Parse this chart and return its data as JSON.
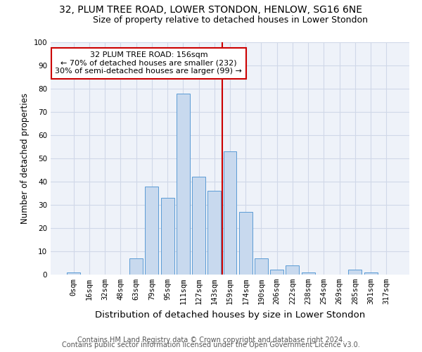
{
  "title": "32, PLUM TREE ROAD, LOWER STONDON, HENLOW, SG16 6NE",
  "subtitle": "Size of property relative to detached houses in Lower Stondon",
  "xlabel": "Distribution of detached houses by size in Lower Stondon",
  "ylabel": "Number of detached properties",
  "bar_labels": [
    "0sqm",
    "16sqm",
    "32sqm",
    "48sqm",
    "63sqm",
    "79sqm",
    "95sqm",
    "111sqm",
    "127sqm",
    "143sqm",
    "159sqm",
    "174sqm",
    "190sqm",
    "206sqm",
    "222sqm",
    "238sqm",
    "254sqm",
    "269sqm",
    "285sqm",
    "301sqm",
    "317sqm"
  ],
  "bar_heights": [
    1,
    0,
    0,
    0,
    7,
    38,
    33,
    78,
    42,
    36,
    53,
    27,
    7,
    2,
    4,
    1,
    0,
    0,
    2,
    1,
    0
  ],
  "bar_color": "#c8d9ee",
  "bar_edge_color": "#5b9bd5",
  "grid_color": "#d0d8e8",
  "background_color": "#eef2f9",
  "vline_x_index": 10,
  "vline_color": "#cc0000",
  "annotation_text": "32 PLUM TREE ROAD: 156sqm\n← 70% of detached houses are smaller (232)\n30% of semi-detached houses are larger (99) →",
  "annotation_box_color": "#ffffff",
  "annotation_box_edge": "#cc0000",
  "footer_line1": "Contains HM Land Registry data © Crown copyright and database right 2024.",
  "footer_line2": "Contains public sector information licensed under the Open Government Licence v3.0.",
  "ylim": [
    0,
    100
  ],
  "title_fontsize": 10,
  "subtitle_fontsize": 9,
  "xlabel_fontsize": 9.5,
  "ylabel_fontsize": 8.5,
  "tick_fontsize": 7.5,
  "annotation_fontsize": 8,
  "footer_fontsize": 7
}
